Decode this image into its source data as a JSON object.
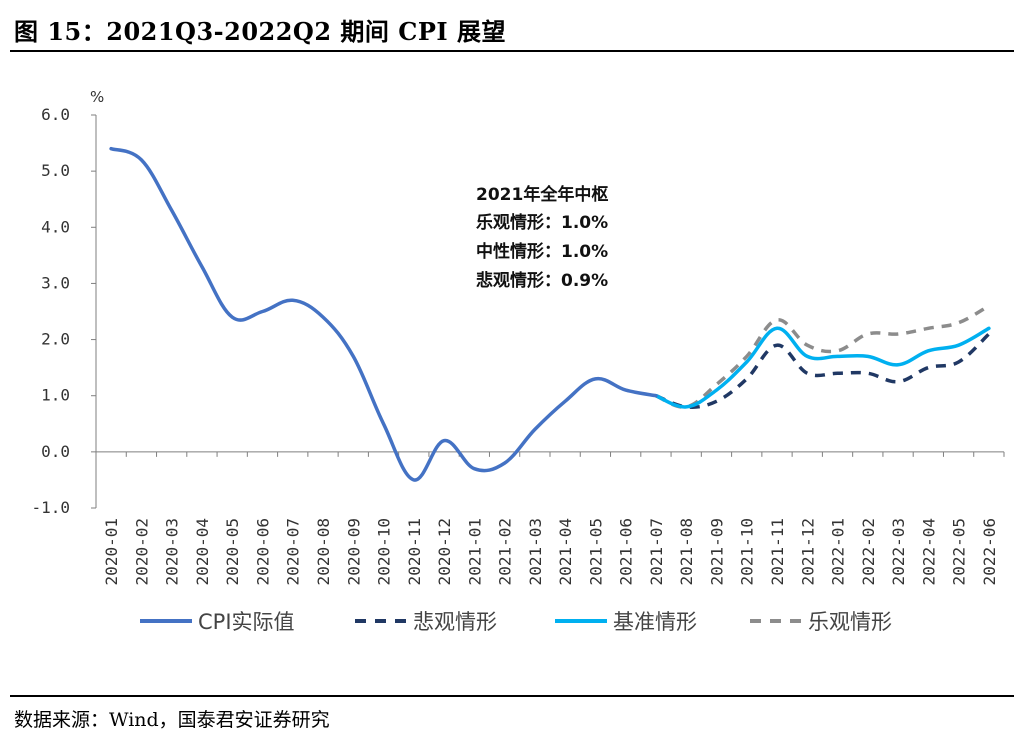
{
  "title": "图 15：2021Q3-2022Q2 期间 CPI 展望",
  "source": "数据来源：Wind，国泰君安证券研究",
  "colors": {
    "actual": "#4472C4",
    "pessimistic": "#203864",
    "base": "#00B0F0",
    "optimistic": "#8C8C8C"
  },
  "chart_data": {
    "type": "line",
    "title": "",
    "xlabel": "",
    "ylabel": "%",
    "ylim": [
      -1.0,
      6.0
    ],
    "yticks": [
      "6.0",
      "5.0",
      "4.0",
      "3.0",
      "2.0",
      "1.0",
      "0.0",
      "-1.0"
    ],
    "grid": false,
    "legend_position": "bottom",
    "categories": [
      "2020-01",
      "2020-02",
      "2020-03",
      "2020-04",
      "2020-05",
      "2020-06",
      "2020-07",
      "2020-08",
      "2020-09",
      "2020-10",
      "2020-11",
      "2020-12",
      "2021-01",
      "2021-02",
      "2021-03",
      "2021-04",
      "2021-05",
      "2021-06",
      "2021-07",
      "2021-08",
      "2021-09",
      "2021-10",
      "2021-11",
      "2021-12",
      "2022-01",
      "2022-02",
      "2022-03",
      "2022-04",
      "2022-05",
      "2022-06"
    ],
    "series": [
      {
        "name": "CPI实际值",
        "style": "solid",
        "color": "#4472C4",
        "values": [
          5.4,
          5.2,
          4.3,
          3.3,
          2.4,
          2.5,
          2.7,
          2.4,
          1.7,
          0.5,
          -0.5,
          0.2,
          -0.3,
          -0.2,
          0.4,
          0.9,
          1.3,
          1.1,
          1.0,
          null,
          null,
          null,
          null,
          null,
          null,
          null,
          null,
          null,
          null,
          null
        ]
      },
      {
        "name": "悲观情形",
        "style": "dashed",
        "color": "#203864",
        "values": [
          null,
          null,
          null,
          null,
          null,
          null,
          null,
          null,
          null,
          null,
          null,
          null,
          null,
          null,
          null,
          null,
          null,
          null,
          1.0,
          0.8,
          0.9,
          1.3,
          1.9,
          1.4,
          1.4,
          1.4,
          1.25,
          1.5,
          1.6,
          2.1
        ]
      },
      {
        "name": "基准情形",
        "style": "solid",
        "color": "#00B0F0",
        "values": [
          null,
          null,
          null,
          null,
          null,
          null,
          null,
          null,
          null,
          null,
          null,
          null,
          null,
          null,
          null,
          null,
          null,
          null,
          1.0,
          0.8,
          1.1,
          1.6,
          2.2,
          1.7,
          1.7,
          1.7,
          1.55,
          1.8,
          1.9,
          2.2
        ]
      },
      {
        "name": "乐观情形",
        "style": "dashed",
        "color": "#8C8C8C",
        "values": [
          null,
          null,
          null,
          null,
          null,
          null,
          null,
          null,
          null,
          null,
          null,
          null,
          null,
          null,
          null,
          null,
          null,
          null,
          1.0,
          0.8,
          1.2,
          1.7,
          2.35,
          1.9,
          1.8,
          2.1,
          2.1,
          2.2,
          2.3,
          2.6
        ]
      }
    ],
    "annotation": [
      "2021年全年中枢",
      "乐观情形：1.0%",
      "中性情形：1.0%",
      "悲观情形：0.9%"
    ]
  }
}
